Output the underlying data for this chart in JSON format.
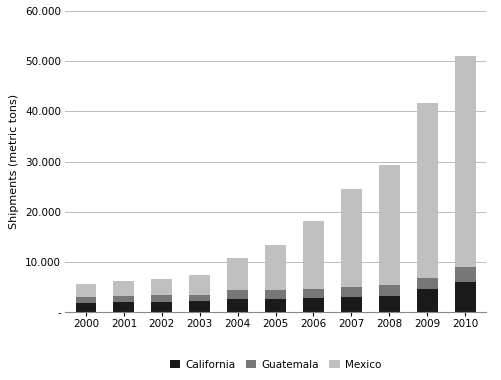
{
  "years": [
    2000,
    2001,
    2002,
    2003,
    2004,
    2005,
    2006,
    2007,
    2008,
    2009,
    2010
  ],
  "california": [
    1800,
    1900,
    2000,
    2100,
    2500,
    2600,
    2800,
    3000,
    3200,
    4500,
    6000
  ],
  "guatemala": [
    1200,
    1200,
    1300,
    1300,
    1800,
    1800,
    1800,
    2000,
    2200,
    2200,
    3000
  ],
  "mexico": [
    2500,
    3000,
    3200,
    4000,
    6500,
    9000,
    13500,
    19500,
    24000,
    35000,
    42000
  ],
  "colors": {
    "california": "#1a1a1a",
    "guatemala": "#777777",
    "mexico": "#c0c0c0"
  },
  "ylabel": "Shipments (metric tons)",
  "ylim": [
    0,
    60000
  ],
  "yticks": [
    0,
    10000,
    20000,
    30000,
    40000,
    50000,
    60000
  ],
  "ytick_labels": [
    "-",
    "10.000",
    "20.000",
    "30.000",
    "40.000",
    "50.000",
    "60.000"
  ],
  "legend_labels": [
    "California",
    "Guatemala",
    "Mexico"
  ],
  "bar_width": 0.55,
  "background_color": "#ffffff",
  "grid_color": "#bbbbbb"
}
